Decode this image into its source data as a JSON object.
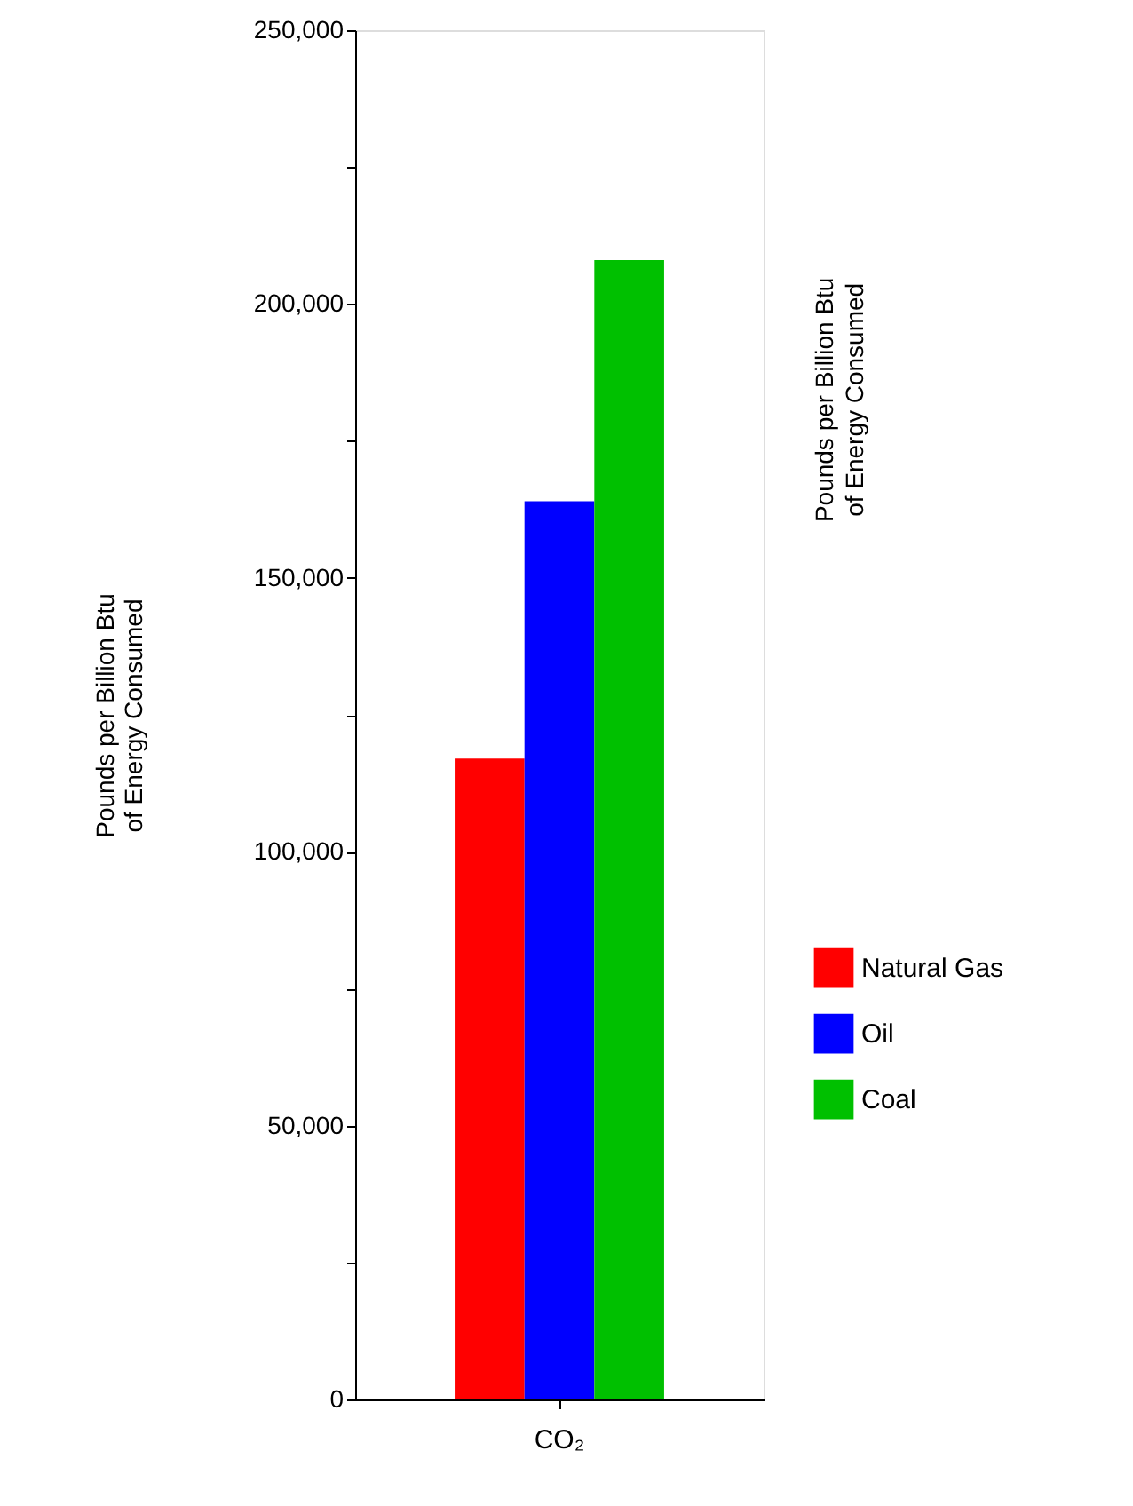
{
  "chart_data": {
    "type": "bar",
    "categories": [
      "CO₂"
    ],
    "series": [
      {
        "name": "Natural Gas",
        "color": "#ff0000",
        "values": [
          117000
        ]
      },
      {
        "name": "Oil",
        "color": "#0000ff",
        "values": [
          164000
        ]
      },
      {
        "name": "Coal",
        "color": "#00c000",
        "values": [
          208000
        ]
      }
    ],
    "ylabel": "Pounds per Billion Btu\nof Energy Consumed",
    "y2label": "Pounds per Billion Btu\nof Energy Consumed",
    "ylim": [
      0,
      250000
    ],
    "yticks": [
      0,
      {
        "value": 25000,
        "label": null
      },
      {
        "value": 50000,
        "label": "50,000"
      },
      {
        "value": 75000,
        "label": null
      },
      {
        "value": 100000,
        "label": "100,000"
      },
      {
        "value": 125000,
        "label": null
      },
      {
        "value": 150000,
        "label": "150,000"
      },
      {
        "value": 175000,
        "label": null
      },
      {
        "value": 200000,
        "label": "200,000"
      },
      {
        "value": 225000,
        "label": null
      },
      {
        "value": 250000,
        "label": "250,000"
      }
    ],
    "grid": false,
    "legend": "right"
  }
}
